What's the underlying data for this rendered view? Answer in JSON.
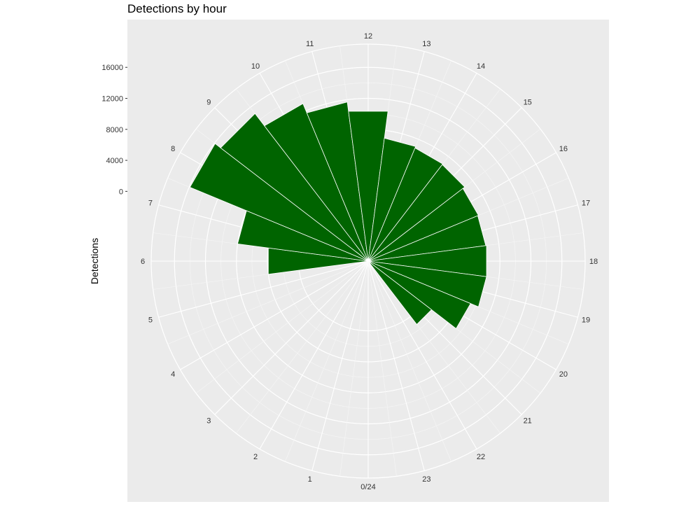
{
  "chart_data": {
    "type": "bar",
    "polar": true,
    "title": "Detections by hour",
    "xlabel": "",
    "ylabel": "Detections",
    "ylim": [
      -9000,
      19000
    ],
    "y_ticks": [
      "0",
      "4000",
      "8000",
      "12000",
      "16000"
    ],
    "y_tick_values": [
      0,
      4000,
      8000,
      12000,
      16000
    ],
    "hour_labels": [
      "0/24",
      "1",
      "2",
      "3",
      "4",
      "5",
      "6",
      "7",
      "8",
      "9",
      "10",
      "11",
      "12",
      "13",
      "14",
      "15",
      "16",
      "17",
      "18",
      "19",
      "20",
      "21",
      "22",
      "23"
    ],
    "categories": [
      "0",
      "1",
      "2",
      "3",
      "4",
      "5",
      "6",
      "7",
      "8",
      "9",
      "10",
      "11",
      "12",
      "13",
      "14",
      "15",
      "16",
      "17",
      "18",
      "19",
      "20",
      "21",
      "22",
      "23"
    ],
    "values": [
      0,
      0,
      0,
      0,
      0,
      0,
      4000,
      8000,
      15900,
      15000,
      13000,
      11700,
      10500,
      7000,
      6800,
      6700,
      6400,
      6300,
      6400,
      6400,
      5300,
      1300,
      0,
      0
    ],
    "bar_color": "#006400",
    "panel_color": "#EBEBEB",
    "grid_color": "#FFFFFF",
    "grid": true
  }
}
